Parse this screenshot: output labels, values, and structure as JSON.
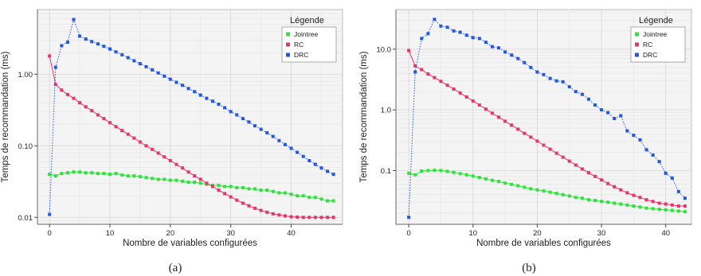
{
  "chart_data": [
    {
      "type": "line",
      "caption": "(a)",
      "xlabel": "Nombre de variables configurées",
      "ylabel": "Temps de recommandation (ms)",
      "xlim": [
        -2,
        48.5
      ],
      "ylim": [
        0.008,
        8
      ],
      "yscale": "log",
      "xticks": [
        0,
        10,
        20,
        30,
        40
      ],
      "yticks": [
        0.01,
        0.1,
        1
      ],
      "ytick_labels": [
        "0.01",
        "0.10",
        "1.00"
      ],
      "grid": true,
      "legend": {
        "title": "Légende",
        "position": "top-right"
      },
      "series": [
        {
          "name": "Jointree",
          "color": "#2ee33a",
          "style": "solid",
          "x": [
            0,
            1,
            2,
            3,
            4,
            5,
            6,
            7,
            8,
            9,
            10,
            11,
            12,
            13,
            14,
            15,
            16,
            17,
            18,
            19,
            20,
            21,
            22,
            23,
            24,
            25,
            26,
            27,
            28,
            29,
            30,
            31,
            32,
            33,
            34,
            35,
            36,
            37,
            38,
            39,
            40,
            41,
            42,
            43,
            44,
            45,
            46,
            47
          ],
          "y": [
            0.04,
            0.038,
            0.041,
            0.042,
            0.043,
            0.043,
            0.042,
            0.042,
            0.041,
            0.041,
            0.04,
            0.041,
            0.039,
            0.038,
            0.038,
            0.037,
            0.036,
            0.035,
            0.034,
            0.034,
            0.033,
            0.033,
            0.032,
            0.031,
            0.031,
            0.03,
            0.029,
            0.028,
            0.028,
            0.027,
            0.027,
            0.026,
            0.026,
            0.025,
            0.025,
            0.024,
            0.024,
            0.023,
            0.022,
            0.022,
            0.021,
            0.02,
            0.02,
            0.019,
            0.019,
            0.018,
            0.017,
            0.017
          ]
        },
        {
          "name": "RC",
          "color": "#e8336b",
          "style": "solid",
          "x": [
            0,
            1,
            2,
            3,
            4,
            5,
            6,
            7,
            8,
            9,
            10,
            11,
            12,
            13,
            14,
            15,
            16,
            17,
            18,
            19,
            20,
            21,
            22,
            23,
            24,
            25,
            26,
            27,
            28,
            29,
            30,
            31,
            32,
            33,
            34,
            35,
            36,
            37,
            38,
            39,
            40,
            41,
            42,
            43,
            44,
            45,
            46,
            47
          ],
          "y": [
            1.8,
            0.72,
            0.6,
            0.52,
            0.46,
            0.4,
            0.35,
            0.31,
            0.27,
            0.24,
            0.21,
            0.185,
            0.163,
            0.145,
            0.128,
            0.113,
            0.1,
            0.089,
            0.079,
            0.07,
            0.062,
            0.055,
            0.049,
            0.043,
            0.038,
            0.034,
            0.03,
            0.027,
            0.024,
            0.0215,
            0.0193,
            0.0174,
            0.0158,
            0.0145,
            0.0134,
            0.0125,
            0.0118,
            0.0112,
            0.0108,
            0.0105,
            0.0102,
            0.0101,
            0.01,
            0.01,
            0.01,
            0.01,
            0.01,
            0.01
          ]
        },
        {
          "name": "DRC",
          "color": "#2257e3",
          "style": "dotted",
          "x": [
            0,
            1,
            2,
            3,
            4,
            5,
            6,
            7,
            8,
            9,
            10,
            11,
            12,
            13,
            14,
            15,
            16,
            17,
            18,
            19,
            20,
            21,
            22,
            23,
            24,
            25,
            26,
            27,
            28,
            29,
            30,
            31,
            32,
            33,
            34,
            35,
            36,
            37,
            38,
            39,
            40,
            41,
            42,
            43,
            44,
            45,
            46,
            47
          ],
          "y": [
            0.011,
            1.25,
            2.5,
            2.8,
            5.8,
            3.4,
            3.1,
            2.85,
            2.65,
            2.45,
            2.25,
            2.05,
            1.87,
            1.7,
            1.54,
            1.4,
            1.27,
            1.15,
            1.04,
            0.94,
            0.85,
            0.77,
            0.7,
            0.63,
            0.57,
            0.51,
            0.46,
            0.42,
            0.38,
            0.34,
            0.3,
            0.27,
            0.24,
            0.215,
            0.19,
            0.17,
            0.152,
            0.135,
            0.118,
            0.104,
            0.092,
            0.081,
            0.071,
            0.062,
            0.055,
            0.049,
            0.044,
            0.04
          ]
        }
      ]
    },
    {
      "type": "line",
      "caption": "(b)",
      "xlabel": "Nombre de variables configurées",
      "ylabel": "Temps de recommandation (ms)",
      "xlim": [
        -2,
        44
      ],
      "ylim": [
        0.013,
        45
      ],
      "yscale": "log",
      "xticks": [
        0,
        10,
        20,
        30,
        40
      ],
      "yticks": [
        0.1,
        1,
        10
      ],
      "ytick_labels": [
        "0.1",
        "1.0",
        "10.0"
      ],
      "grid": true,
      "legend": {
        "title": "Légende",
        "position": "top-right"
      },
      "series": [
        {
          "name": "Jointree",
          "color": "#2ee33a",
          "style": "solid",
          "x": [
            0,
            1,
            2,
            3,
            4,
            5,
            6,
            7,
            8,
            9,
            10,
            11,
            12,
            13,
            14,
            15,
            16,
            17,
            18,
            19,
            20,
            21,
            22,
            23,
            24,
            25,
            26,
            27,
            28,
            29,
            30,
            31,
            32,
            33,
            34,
            35,
            36,
            37,
            38,
            39,
            40,
            41,
            42,
            43
          ],
          "y": [
            0.09,
            0.085,
            0.098,
            0.1,
            0.101,
            0.1,
            0.097,
            0.093,
            0.089,
            0.085,
            0.081,
            0.077,
            0.073,
            0.069,
            0.066,
            0.062,
            0.059,
            0.056,
            0.053,
            0.05,
            0.048,
            0.046,
            0.044,
            0.042,
            0.04,
            0.038,
            0.036,
            0.035,
            0.033,
            0.032,
            0.031,
            0.03,
            0.029,
            0.028,
            0.027,
            0.026,
            0.025,
            0.024,
            0.0235,
            0.023,
            0.0225,
            0.022,
            0.0215,
            0.021
          ]
        },
        {
          "name": "RC",
          "color": "#e8336b",
          "style": "solid",
          "x": [
            0,
            1,
            2,
            3,
            4,
            5,
            6,
            7,
            8,
            9,
            10,
            11,
            12,
            13,
            14,
            15,
            16,
            17,
            18,
            19,
            20,
            21,
            22,
            23,
            24,
            25,
            26,
            27,
            28,
            29,
            30,
            31,
            32,
            33,
            34,
            35,
            36,
            37,
            38,
            39,
            40,
            41,
            42,
            43
          ],
          "y": [
            9.5,
            5.3,
            4.6,
            3.9,
            3.4,
            2.95,
            2.55,
            2.2,
            1.9,
            1.63,
            1.4,
            1.2,
            1.03,
            0.88,
            0.76,
            0.65,
            0.56,
            0.48,
            0.41,
            0.355,
            0.305,
            0.262,
            0.225,
            0.193,
            0.166,
            0.143,
            0.123,
            0.106,
            0.092,
            0.08,
            0.07,
            0.061,
            0.054,
            0.048,
            0.043,
            0.039,
            0.036,
            0.033,
            0.031,
            0.029,
            0.028,
            0.027,
            0.026,
            0.026
          ]
        },
        {
          "name": "DRC",
          "color": "#2257e3",
          "style": "dotted",
          "x": [
            0,
            1,
            2,
            3,
            4,
            5,
            6,
            7,
            8,
            9,
            10,
            11,
            12,
            13,
            14,
            15,
            16,
            17,
            18,
            19,
            20,
            21,
            22,
            23,
            24,
            25,
            26,
            27,
            28,
            29,
            30,
            31,
            32,
            33,
            34,
            35,
            36,
            37,
            38,
            39,
            40,
            41,
            42,
            43
          ],
          "y": [
            0.017,
            4.2,
            15.0,
            18.0,
            31.0,
            24.0,
            23.0,
            20.0,
            19.0,
            17.0,
            15.5,
            15.0,
            13.0,
            11.0,
            10.5,
            9.0,
            8.0,
            7.0,
            6.0,
            5.0,
            4.2,
            3.8,
            3.3,
            3.0,
            2.9,
            2.4,
            2.0,
            1.8,
            1.5,
            1.2,
            1.0,
            0.9,
            0.72,
            0.8,
            0.45,
            0.38,
            0.32,
            0.22,
            0.18,
            0.14,
            0.09,
            0.075,
            0.045,
            0.035
          ]
        }
      ]
    }
  ]
}
